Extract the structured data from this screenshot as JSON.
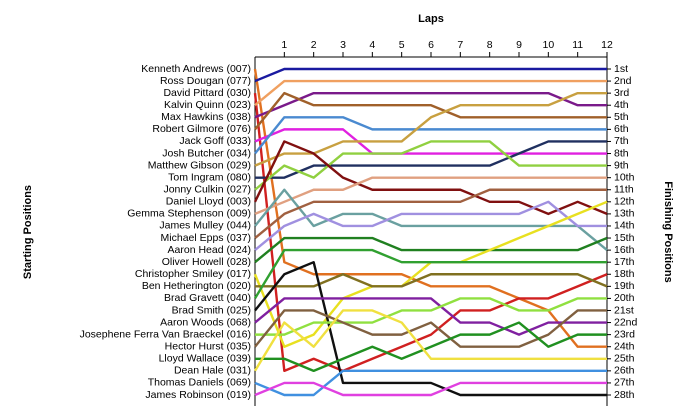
{
  "chart_data": {
    "type": "line",
    "title": "Laps",
    "y_label": "Starting Positions",
    "y2_label": "Finishing Positions",
    "x": [
      0,
      1,
      2,
      3,
      4,
      5,
      6,
      7,
      8,
      9,
      10,
      11,
      12
    ],
    "xlim": [
      0,
      12
    ],
    "xticks": [
      1,
      2,
      3,
      4,
      5,
      6,
      7,
      8,
      9,
      10,
      11,
      12
    ],
    "ylim": [
      1,
      28
    ],
    "yticks": [
      {
        "value": 1,
        "label": "1st"
      },
      {
        "value": 2,
        "label": "2nd"
      },
      {
        "value": 3,
        "label": "3rd"
      },
      {
        "value": 4,
        "label": "4th"
      },
      {
        "value": 5,
        "label": "5th"
      },
      {
        "value": 6,
        "label": "6th"
      },
      {
        "value": 7,
        "label": "7th"
      },
      {
        "value": 8,
        "label": "8th"
      },
      {
        "value": 9,
        "label": "9th"
      },
      {
        "value": 10,
        "label": "10th"
      },
      {
        "value": 11,
        "label": "11th"
      },
      {
        "value": 12,
        "label": "12th"
      },
      {
        "value": 13,
        "label": "13th"
      },
      {
        "value": 14,
        "label": "14th"
      },
      {
        "value": 15,
        "label": "15th"
      },
      {
        "value": 16,
        "label": "16th"
      },
      {
        "value": 17,
        "label": "17th"
      },
      {
        "value": 18,
        "label": "18th"
      },
      {
        "value": 19,
        "label": "19th"
      },
      {
        "value": 20,
        "label": "20th"
      },
      {
        "value": 21,
        "label": "21st"
      },
      {
        "value": 22,
        "label": "22nd"
      },
      {
        "value": 23,
        "label": "23rd"
      },
      {
        "value": 24,
        "label": "24th"
      },
      {
        "value": 25,
        "label": "25th"
      },
      {
        "value": 26,
        "label": "26th"
      },
      {
        "value": 27,
        "label": "27th"
      },
      {
        "value": 28,
        "label": "28th"
      }
    ],
    "series": [
      {
        "name": "Kenneth Andrews (007)",
        "color": "#e07020",
        "values": [
          1,
          17,
          18,
          18,
          18,
          18,
          19,
          19,
          19,
          20,
          21,
          24,
          24
        ]
      },
      {
        "name": "Ross Dougan (077)",
        "color": "#1a1aa0",
        "values": [
          2,
          1,
          1,
          1,
          1,
          1,
          1,
          1,
          1,
          1,
          1,
          1,
          1
        ]
      },
      {
        "name": "David Pittard (030)",
        "color": "#d02020",
        "values": [
          3,
          26,
          25,
          26,
          25,
          24,
          23,
          21,
          21,
          20,
          20,
          19,
          18
        ]
      },
      {
        "name": "Kalvin Quinn (023)",
        "color": "#f0a060",
        "values": [
          4,
          2,
          2,
          2,
          2,
          2,
          2,
          2,
          2,
          2,
          2,
          2,
          2
        ]
      },
      {
        "name": "Max Hawkins (038)",
        "color": "#7a1a8a",
        "values": [
          5,
          4,
          3,
          3,
          3,
          3,
          3,
          3,
          3,
          3,
          3,
          4,
          4
        ]
      },
      {
        "name": "Robert Gilmore (076)",
        "color": "#a0602a",
        "values": [
          6,
          3,
          4,
          4,
          4,
          4,
          4,
          5,
          5,
          5,
          5,
          5,
          5
        ]
      },
      {
        "name": "Jack Goff (033)",
        "color": "#e020e0",
        "values": [
          7,
          6,
          6,
          6,
          8,
          8,
          8,
          8,
          8,
          8,
          8,
          8,
          8
        ]
      },
      {
        "name": "Josh Butcher (034)",
        "color": "#4a8ad0",
        "values": [
          8,
          5,
          5,
          5,
          6,
          6,
          6,
          6,
          6,
          6,
          6,
          6,
          6
        ]
      },
      {
        "name": "Matthew Gibson (029)",
        "color": "#c8a040",
        "values": [
          9,
          8,
          8,
          7,
          7,
          7,
          5,
          4,
          4,
          4,
          4,
          3,
          3
        ]
      },
      {
        "name": "Tom Ingram (080)",
        "color": "#203060",
        "values": [
          10,
          10,
          9,
          9,
          9,
          9,
          9,
          9,
          9,
          8,
          7,
          7,
          7
        ]
      },
      {
        "name": "Jonny Culkin (027)",
        "color": "#90d040",
        "values": [
          11,
          9,
          10,
          8,
          8,
          8,
          7,
          7,
          7,
          9,
          9,
          9,
          9
        ]
      },
      {
        "name": "Daniel Lloyd (003)",
        "color": "#801010",
        "values": [
          12,
          7,
          8,
          10,
          11,
          11,
          11,
          11,
          12,
          12,
          13,
          12,
          13
        ]
      },
      {
        "name": "Gemma Stephenson (009)",
        "color": "#e0a080",
        "values": [
          13,
          12,
          11,
          11,
          10,
          10,
          10,
          10,
          10,
          10,
          10,
          10,
          10
        ]
      },
      {
        "name": "James Mulley (044)",
        "color": "#6aa0a0",
        "values": [
          14,
          11,
          14,
          13,
          13,
          14,
          14,
          14,
          14,
          14,
          14,
          14,
          16
        ]
      },
      {
        "name": "Michael Epps (037)",
        "color": "#a06040",
        "values": [
          15,
          13,
          12,
          12,
          12,
          12,
          12,
          12,
          11,
          11,
          11,
          11,
          11
        ]
      },
      {
        "name": "Aaron Head (024)",
        "color": "#a090e0",
        "values": [
          16,
          14,
          13,
          14,
          14,
          13,
          13,
          13,
          13,
          13,
          12,
          14,
          14
        ]
      },
      {
        "name": "Oliver Howell (028)",
        "color": "#208020",
        "values": [
          17,
          15,
          15,
          15,
          15,
          16,
          16,
          16,
          16,
          16,
          16,
          16,
          15
        ]
      },
      {
        "name": "Christopher Smiley (017)",
        "color": "#e8e020",
        "values": [
          18,
          24,
          23,
          20,
          19,
          19,
          17,
          17,
          16,
          15,
          14,
          13,
          12
        ]
      },
      {
        "name": "Ben Hetherington (020)",
        "color": "#807020",
        "values": [
          19,
          19,
          19,
          18,
          19,
          19,
          18,
          18,
          18,
          18,
          18,
          18,
          19
        ]
      },
      {
        "name": "Brad Gravett (040)",
        "color": "#30a030",
        "values": [
          20,
          16,
          16,
          16,
          16,
          17,
          17,
          17,
          17,
          17,
          17,
          17,
          17
        ]
      },
      {
        "name": "Brad Smith (025)",
        "color": "#101010",
        "values": [
          21,
          18,
          17,
          27,
          27,
          27,
          27,
          28,
          28,
          28,
          28,
          28,
          28
        ]
      },
      {
        "name": "Aaron Woods (068)",
        "color": "#8020a0",
        "values": [
          22,
          20,
          20,
          20,
          20,
          20,
          20,
          22,
          22,
          23,
          22,
          22,
          22
        ]
      },
      {
        "name": "Josephene Ferra Van Braeckel (016)",
        "color": "#90e040",
        "values": [
          23,
          23,
          22,
          22,
          22,
          21,
          21,
          20,
          20,
          21,
          21,
          20,
          20
        ]
      },
      {
        "name": "Hector Hurst (035)",
        "color": "#806040",
        "values": [
          24,
          21,
          21,
          22,
          23,
          23,
          22,
          24,
          24,
          24,
          23,
          21,
          21
        ]
      },
      {
        "name": "Lloyd Wallace (039)",
        "color": "#209020",
        "values": [
          25,
          25,
          26,
          25,
          24,
          25,
          24,
          23,
          23,
          22,
          24,
          23,
          23
        ]
      },
      {
        "name": "Dean Hale (031)",
        "color": "#f0e040",
        "values": [
          26,
          22,
          24,
          21,
          21,
          22,
          25,
          25,
          25,
          25,
          25,
          25,
          25
        ]
      },
      {
        "name": "Thomas Daniels (069)",
        "color": "#4090e0",
        "values": [
          27,
          28,
          28,
          26,
          26,
          26,
          26,
          26,
          26,
          26,
          26,
          26,
          26
        ]
      },
      {
        "name": "James Robinson (019)",
        "color": "#e040e0",
        "values": [
          28,
          27,
          27,
          28,
          28,
          28,
          28,
          27,
          27,
          27,
          27,
          27,
          27
        ]
      }
    ]
  }
}
